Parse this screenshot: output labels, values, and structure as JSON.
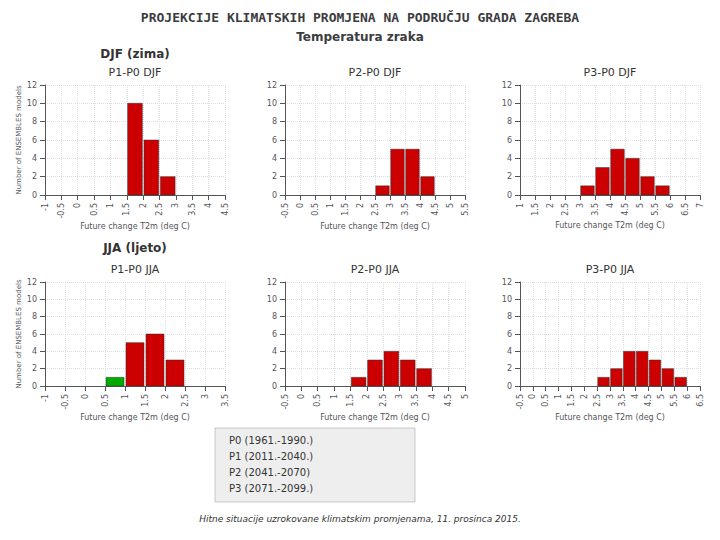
{
  "title": "PROJEKCIJE KLIMATSKIH PROMJENA NA PODRUČJU GRADA ZAGREBA",
  "subtitle": "Temperatura zraka",
  "annotations": [
    "DJF (zima)",
    "JJA (ljeto)",
    "Hitne situacije uzrokovane klimatskim promjenama, 11. prosinca 2015.",
    "P0 (1961.-1990.)",
    "P1 (2011.-2040.)",
    "P2 (2041.-2070)",
    "P3 (2071.-2099.)"
  ],
  "chart_data": [
    {
      "type": "histogram",
      "title": "P1-P0 DJF",
      "xlabel": "Future change T2m (deg C)",
      "ylabel": "Number of ENSEMBLES models",
      "bins": [
        0.5,
        1.0,
        1.5,
        2.0,
        2.5,
        3.0
      ],
      "values": [
        0,
        0,
        10,
        6,
        2
      ],
      "colors": [
        "#cc0000",
        "#cc0000",
        "#cc0000",
        "#cc0000",
        "#cc0000"
      ],
      "xlim": [
        -1.0,
        4.5
      ],
      "xticks": [
        -1,
        -0.5,
        0,
        0.5,
        1,
        1.5,
        2,
        2.5,
        3,
        3.5,
        4,
        4.5
      ],
      "ylim": [
        0,
        12
      ],
      "yticks": [
        0,
        2,
        4,
        6,
        8,
        10,
        12
      ],
      "grid": true
    },
    {
      "type": "histogram",
      "title": "P2-P0 DJF",
      "xlabel": "Future change T2m (deg C)",
      "bins": [
        0.5,
        1.0,
        1.5,
        2.0,
        2.5,
        3.0,
        3.5,
        4.0,
        4.5,
        5.0
      ],
      "values": [
        0,
        0,
        0,
        0,
        1,
        5,
        5,
        2,
        0
      ],
      "colors": [
        "#cc0000",
        "#cc0000",
        "#cc0000",
        "#cc0000",
        "#cc0000",
        "#cc0000",
        "#cc0000",
        "#cc0000",
        "#cc0000"
      ],
      "xlim": [
        -0.5,
        5.5
      ],
      "xticks": [
        -0.5,
        0,
        0.5,
        1,
        1.5,
        2,
        2.5,
        3,
        3.5,
        4,
        4.5,
        5,
        5.5
      ],
      "ylim": [
        0,
        12
      ],
      "yticks": [
        0,
        2,
        4,
        6,
        8,
        10,
        12
      ],
      "grid": true
    },
    {
      "type": "histogram",
      "title": "P3-P0 DJF",
      "xlabel": "Future change T2m (deg C)",
      "bins": [
        1.5,
        2.0,
        2.5,
        3.0,
        3.5,
        4.0,
        4.5,
        5.0,
        5.5,
        6.0
      ],
      "values": [
        0,
        0,
        0,
        1,
        3,
        5,
        4,
        2,
        1
      ],
      "colors": [
        "#cc0000",
        "#cc0000",
        "#cc0000",
        "#cc0000",
        "#cc0000",
        "#cc0000",
        "#cc0000",
        "#cc0000",
        "#cc0000"
      ],
      "xlim": [
        1.0,
        7.0
      ],
      "xticks": [
        1,
        1.5,
        2,
        2.5,
        3,
        3.5,
        4,
        4.5,
        5,
        5.5,
        6,
        6.5,
        7
      ],
      "ylim": [
        0,
        12
      ],
      "yticks": [
        0,
        2,
        4,
        6,
        8,
        10,
        12
      ],
      "grid": true
    },
    {
      "type": "histogram",
      "title": "P1-P0 JJA",
      "xlabel": "Future change T2m (deg C)",
      "ylabel": "Number of ENSEMBLES models",
      "bins": [
        -0.5,
        0.0,
        0.5,
        1.0,
        1.5,
        2.0,
        2.5,
        3.0
      ],
      "values": [
        0,
        0,
        1,
        5,
        6,
        3,
        0
      ],
      "colors": [
        "#cc0000",
        "#cc0000",
        "#00aa00",
        "#cc0000",
        "#cc0000",
        "#cc0000",
        "#cc0000"
      ],
      "xlim": [
        -1.0,
        3.5
      ],
      "xticks": [
        -1,
        -0.5,
        0,
        0.5,
        1,
        1.5,
        2,
        2.5,
        3,
        3.5
      ],
      "ylim": [
        0,
        12
      ],
      "yticks": [
        0,
        2,
        4,
        6,
        8,
        10,
        12
      ],
      "grid": true
    },
    {
      "type": "histogram",
      "title": "P2-P0 JJA",
      "xlabel": "Future change T2m (deg C)",
      "bins": [
        0.5,
        1.0,
        1.5,
        2.0,
        2.5,
        3.0,
        3.5,
        4.0,
        4.5
      ],
      "values": [
        0,
        0,
        1,
        3,
        4,
        3,
        2,
        0
      ],
      "colors": [
        "#cc0000",
        "#cc0000",
        "#cc0000",
        "#cc0000",
        "#cc0000",
        "#cc0000",
        "#cc0000",
        "#cc0000"
      ],
      "xlim": [
        -0.5,
        5.0
      ],
      "xticks": [
        -0.5,
        0,
        0.5,
        1,
        1.5,
        2,
        2.5,
        3,
        3.5,
        4,
        4.5,
        5
      ],
      "ylim": [
        0,
        12
      ],
      "yticks": [
        0,
        2,
        4,
        6,
        8,
        10,
        12
      ],
      "grid": true
    },
    {
      "type": "histogram",
      "title": "P3-P0 JJA",
      "xlabel": "Future change T2m (deg C)",
      "bins": [
        1.0,
        1.5,
        2.0,
        2.5,
        3.0,
        3.5,
        4.0,
        4.5,
        5.0,
        5.5,
        6.0
      ],
      "values": [
        0,
        0,
        0,
        1,
        2,
        4,
        4,
        3,
        2,
        1
      ],
      "colors": [
        "#cc0000",
        "#cc0000",
        "#cc0000",
        "#cc0000",
        "#cc0000",
        "#cc0000",
        "#cc0000",
        "#cc0000",
        "#cc0000",
        "#cc0000"
      ],
      "xlim": [
        -0.5,
        6.5
      ],
      "xticks": [
        -0.5,
        0,
        0.5,
        1,
        1.5,
        2,
        2.5,
        3,
        3.5,
        4,
        4.5,
        5,
        5.5,
        6,
        6.5
      ],
      "ylim": [
        0,
        12
      ],
      "yticks": [
        0,
        2,
        4,
        6,
        8,
        10,
        12
      ],
      "grid": true
    }
  ]
}
